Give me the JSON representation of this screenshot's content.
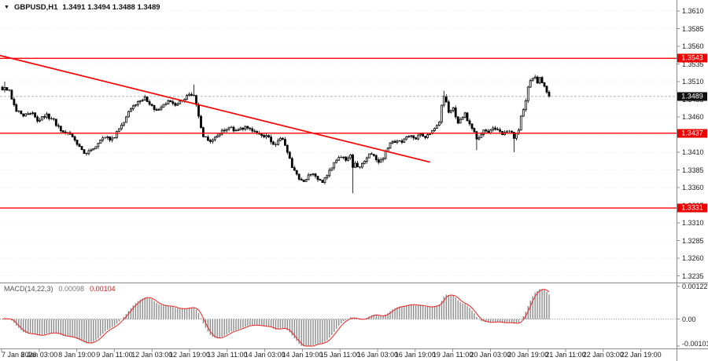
{
  "header": {
    "symbol_period": "GBPUSD,H1",
    "ohlc": "1.3491 1.3494 1.3488 1.3489"
  },
  "macd_panel": {
    "label": "MACD(14,22,3)",
    "value_main": "0.00098",
    "value_signal": "0.00104",
    "axis_ticks": [
      "0.00122",
      "0.00",
      "-0.00101"
    ]
  },
  "price_axis": {
    "ticks": [
      "1.3610",
      "1.3585",
      "1.3560",
      "1.3535",
      "1.3510",
      "1.3485",
      "1.3460",
      "1.3435",
      "1.3410",
      "1.3385",
      "1.3360",
      "1.3335",
      "1.3310",
      "1.3285",
      "1.3260",
      "1.3235"
    ]
  },
  "time_axis": {
    "labels": [
      "7 Jan 2026",
      "8 Jan 03:00",
      "8 Jan 19:00",
      "9 Jan 11:00",
      "12 Jan 03:00",
      "12 Jan 19:00",
      "13 Jan 11:00",
      "14 Jan 03:00",
      "14 Jan 19:00",
      "15 Jan 11:00",
      "16 Jan 03:00",
      "16 Jan 19:00",
      "19 Jan 11:00",
      "20 Jan 03:00",
      "20 Jan 19:00",
      "21 Jan 11:00",
      "22 Jan 03:00",
      "22 Jan 19:00"
    ]
  },
  "chart_data": {
    "type": "candlestick",
    "symbol": "GBPUSD",
    "timeframe": "H1",
    "price_range": {
      "top": 1.361,
      "bottom": 1.3235
    },
    "slots": 235,
    "close_path": [
      [
        0,
        1.3498
      ],
      [
        1,
        1.3503
      ],
      [
        3,
        1.3496
      ],
      [
        6,
        1.347
      ],
      [
        9,
        1.3462
      ],
      [
        13,
        1.3466
      ],
      [
        15,
        1.3455
      ],
      [
        19,
        1.3462
      ],
      [
        22,
        1.3455
      ],
      [
        25,
        1.344
      ],
      [
        28,
        1.3436
      ],
      [
        31,
        1.3428
      ],
      [
        34,
        1.3412
      ],
      [
        36,
        1.3408
      ],
      [
        39,
        1.3416
      ],
      [
        42,
        1.3428
      ],
      [
        44,
        1.3432
      ],
      [
        47,
        1.3428
      ],
      [
        50,
        1.3442
      ],
      [
        53,
        1.346
      ],
      [
        55,
        1.3472
      ],
      [
        58,
        1.348
      ],
      [
        61,
        1.3488
      ],
      [
        63,
        1.3478
      ],
      [
        66,
        1.347
      ],
      [
        69,
        1.3478
      ],
      [
        71,
        1.3482
      ],
      [
        74,
        1.3476
      ],
      [
        77,
        1.3484
      ],
      [
        79,
        1.349
      ],
      [
        82,
        1.3492
      ],
      [
        84,
        1.346
      ],
      [
        86,
        1.3432
      ],
      [
        89,
        1.3426
      ],
      [
        91,
        1.3432
      ],
      [
        94,
        1.344
      ],
      [
        97,
        1.3446
      ],
      [
        100,
        1.344
      ],
      [
        104,
        1.3446
      ],
      [
        107,
        1.344
      ],
      [
        110,
        1.3436
      ],
      [
        114,
        1.343
      ],
      [
        116,
        1.342
      ],
      [
        118,
        1.3426
      ],
      [
        120,
        1.343
      ],
      [
        122,
        1.341
      ],
      [
        124,
        1.3388
      ],
      [
        127,
        1.3374
      ],
      [
        129,
        1.337
      ],
      [
        131,
        1.3376
      ],
      [
        133,
        1.338
      ],
      [
        135,
        1.3372
      ],
      [
        137,
        1.3368
      ],
      [
        139,
        1.3378
      ],
      [
        141,
        1.339
      ],
      [
        143,
        1.3398
      ],
      [
        145,
        1.3404
      ],
      [
        147,
        1.34
      ],
      [
        149,
        1.3408
      ],
      [
        150,
        1.3388
      ],
      [
        151,
        1.3394
      ],
      [
        153,
        1.3388
      ],
      [
        155,
        1.3398
      ],
      [
        157,
        1.3408
      ],
      [
        159,
        1.3404
      ],
      [
        161,
        1.3396
      ],
      [
        163,
        1.3402
      ],
      [
        165,
        1.3418
      ],
      [
        167,
        1.3424
      ],
      [
        169,
        1.3428
      ],
      [
        171,
        1.3424
      ],
      [
        173,
        1.343
      ],
      [
        175,
        1.3434
      ],
      [
        177,
        1.343
      ],
      [
        179,
        1.3436
      ],
      [
        181,
        1.3432
      ],
      [
        183,
        1.3438
      ],
      [
        185,
        1.3444
      ],
      [
        187,
        1.3452
      ],
      [
        188,
        1.3475
      ],
      [
        189,
        1.349
      ],
      [
        190,
        1.3482
      ],
      [
        191,
        1.3466
      ],
      [
        193,
        1.3472
      ],
      [
        194,
        1.3458
      ],
      [
        195,
        1.345
      ],
      [
        197,
        1.346
      ],
      [
        198,
        1.3466
      ],
      [
        199,
        1.3454
      ],
      [
        201,
        1.3444
      ],
      [
        202,
        1.3438
      ],
      [
        203,
        1.3428
      ],
      [
        205,
        1.3436
      ],
      [
        206,
        1.3442
      ],
      [
        208,
        1.3438
      ],
      [
        210,
        1.3444
      ],
      [
        212,
        1.344
      ],
      [
        214,
        1.3436
      ],
      [
        216,
        1.3442
      ],
      [
        218,
        1.3438
      ],
      [
        219,
        1.3428
      ],
      [
        221,
        1.3442
      ],
      [
        222,
        1.3462
      ],
      [
        224,
        1.3482
      ],
      [
        225,
        1.35
      ],
      [
        226,
        1.3512
      ],
      [
        228,
        1.3518
      ],
      [
        229,
        1.351
      ],
      [
        230,
        1.3516
      ],
      [
        232,
        1.3505
      ],
      [
        233,
        1.3496
      ],
      [
        234,
        1.3489
      ]
    ],
    "wick_overrides": [
      {
        "slot": 1,
        "high": 1.351
      },
      {
        "slot": 82,
        "high": 1.3506
      },
      {
        "slot": 150,
        "low": 1.3352
      },
      {
        "slot": 189,
        "high": 1.3497
      },
      {
        "slot": 203,
        "low": 1.3413
      },
      {
        "slot": 219,
        "low": 1.341
      }
    ],
    "horizontal_lines": [
      {
        "price": 1.3543,
        "label": "1.3543"
      },
      {
        "price": 1.3437,
        "label": "1.3437"
      },
      {
        "price": 1.3331,
        "label": "1.3331"
      }
    ],
    "trendline": {
      "from_slot": -1,
      "from_price": 1.3547,
      "to_slot": 183,
      "to_price": 1.3396
    },
    "current_price": 1.3489,
    "current_label": "1.3489",
    "macd": {
      "fast": 14,
      "slow": 22,
      "signal": 3,
      "last_main": 0.00098,
      "last_signal": 0.00104,
      "ylim": [
        -0.00101,
        0.00122
      ]
    }
  },
  "colors": {
    "bull": "#ffffff",
    "bear": "#000000",
    "wick": "#000000",
    "level": "#ff0000",
    "trend": "#ff0000",
    "macd_hist": "#8c8c8c",
    "macd_signal": "#ee2222",
    "tag_current_bg": "#111111",
    "tag_level_bg": "#ee0000",
    "grid": "#ededed",
    "axis": "#8a8a8a",
    "bid_line": "#9a9a9a"
  }
}
